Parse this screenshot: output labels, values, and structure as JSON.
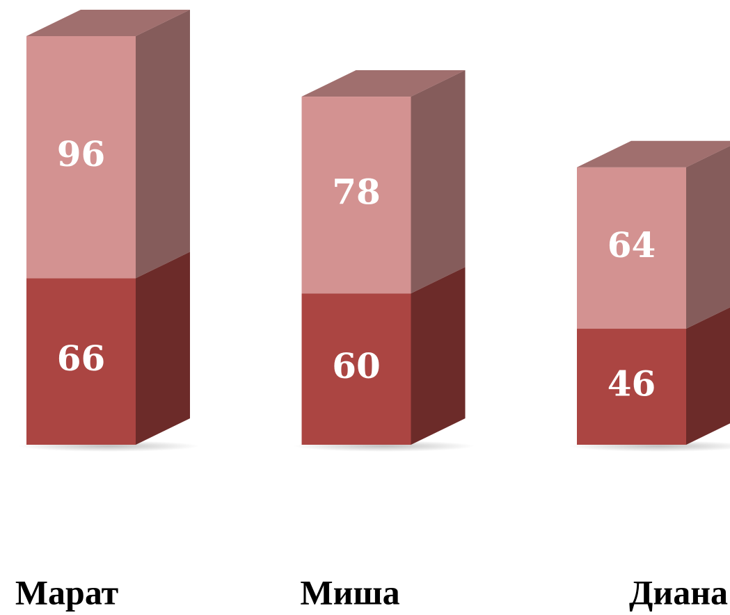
{
  "chart_data": {
    "type": "stacked-bar-3d",
    "categories": [
      "Марат",
      "Миша",
      "Диана"
    ],
    "series": [
      {
        "color": "#ab4542",
        "values": [
          66,
          60,
          46
        ]
      },
      {
        "color": "#d39291",
        "values": [
          96,
          78,
          64
        ]
      }
    ]
  }
}
